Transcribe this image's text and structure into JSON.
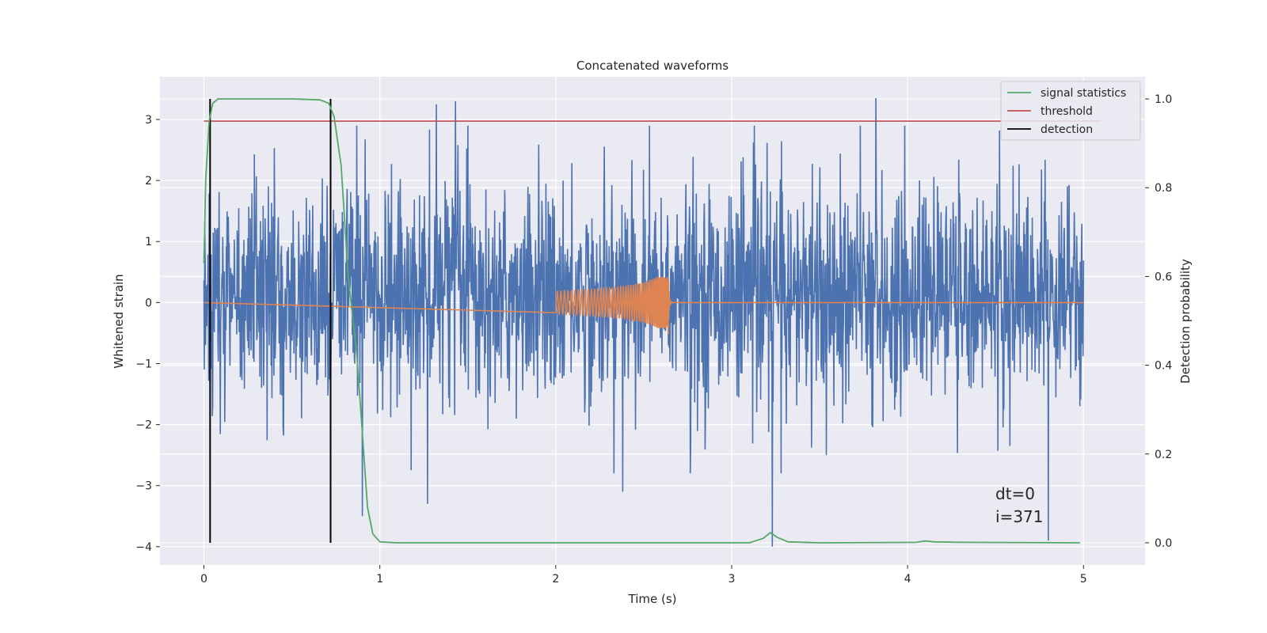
{
  "chart_data": {
    "type": "line",
    "title": "Concatenated waveforms",
    "xlabel": "Time (s)",
    "ylabel": "Whitened strain",
    "y2label": "Detection probability",
    "xlim": [
      -0.25,
      5.35
    ],
    "ylim": [
      -4.3,
      3.7
    ],
    "y2lim": [
      -0.05,
      1.05
    ],
    "xticks": [
      0,
      1,
      2,
      3,
      4,
      5
    ],
    "yticks": [
      -4,
      -3,
      -2,
      -1,
      0,
      1,
      2,
      3
    ],
    "y2ticks": [
      0.0,
      0.2,
      0.4,
      0.6,
      0.8,
      1.0
    ],
    "xtick_labels": [
      "0",
      "1",
      "2",
      "3",
      "4",
      "5"
    ],
    "ytick_labels": [
      "−4",
      "−3",
      "−2",
      "−1",
      "0",
      "1",
      "2",
      "3"
    ],
    "y2tick_labels": [
      "0.0",
      "0.2",
      "0.4",
      "0.6",
      "0.8",
      "1.0"
    ],
    "grid": true,
    "legend_position": "top-right",
    "legend": [
      {
        "label": "signal statistics",
        "color": "#55a868"
      },
      {
        "label": "threshold",
        "color": "#c44e52"
      },
      {
        "label": "detection",
        "color": "#000000"
      }
    ],
    "annotation_lines": [
      "dt=0",
      "i=371"
    ],
    "annotation_at": {
      "x": 4.5,
      "y": -3.5
    },
    "series": [
      {
        "name": "whitened strain (noise)",
        "axis": "left",
        "color": "#4c72b0",
        "x_range": [
          0,
          5
        ],
        "n_samples": 2200,
        "typical_range": [
          -1.7,
          2.0
        ],
        "notable_spikes": [
          {
            "x": 1.32,
            "y": 3.25
          },
          {
            "x": 1.43,
            "y": 3.3
          },
          {
            "x": 3.23,
            "y": -4.0
          },
          {
            "x": 3.82,
            "y": 3.35
          },
          {
            "x": 4.8,
            "y": -3.9
          },
          {
            "x": 0.9,
            "y": -3.5
          },
          {
            "x": 1.27,
            "y": -3.3
          },
          {
            "x": 2.38,
            "y": -3.1
          }
        ]
      },
      {
        "name": "injected chirp",
        "axis": "left",
        "color": "#dd8452",
        "chirp_start": 2.0,
        "merger": 2.64,
        "peak_amplitude": 0.42,
        "start_amplitude": 0.08
      },
      {
        "name": "signal statistics",
        "axis": "right",
        "color": "#55a868",
        "x": [
          0.0,
          0.01,
          0.03,
          0.05,
          0.08,
          0.12,
          0.2,
          0.5,
          0.66,
          0.71,
          0.74,
          0.78,
          0.82,
          0.87,
          0.9,
          0.93,
          0.96,
          1.0,
          1.1,
          3.1,
          3.18,
          3.22,
          3.26,
          3.32,
          3.5,
          4.05,
          4.1,
          4.15,
          4.3,
          4.98
        ],
        "y": [
          0.63,
          0.82,
          0.95,
          0.99,
          1.0,
          1.0,
          1.0,
          1.0,
          0.998,
          0.99,
          0.96,
          0.85,
          0.6,
          0.42,
          0.25,
          0.08,
          0.02,
          0.002,
          0.0,
          0.0,
          0.01,
          0.023,
          0.012,
          0.002,
          0.0,
          0.001,
          0.004,
          0.002,
          0.001,
          0.0
        ]
      },
      {
        "name": "threshold",
        "axis": "right",
        "color": "#c44e52",
        "x": [
          0,
          5.1
        ],
        "y": [
          0.95,
          0.95
        ]
      },
      {
        "name": "detection",
        "axis": "right",
        "color": "#000000",
        "vlines_x": [
          0.035,
          0.72
        ],
        "y_range": [
          0.0,
          1.0
        ]
      }
    ]
  }
}
